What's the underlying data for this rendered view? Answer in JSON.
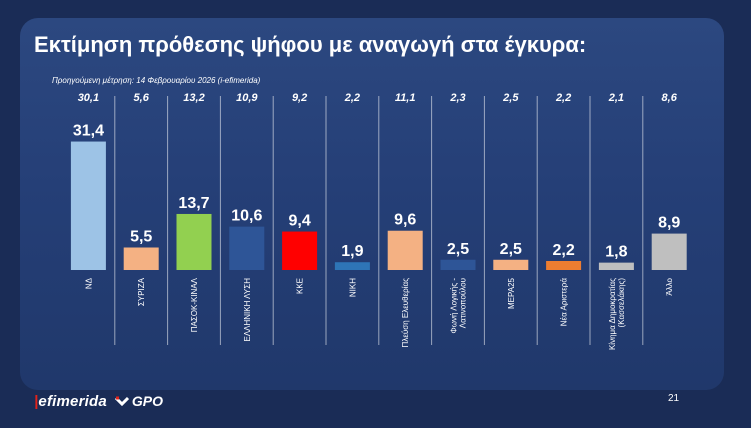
{
  "title": "Εκτίμηση πρόθεσης ψήφου με αναγωγή στα έγκυρα:",
  "previous_note": "Προηγούμενη μέτρηση: 14 Φεβρουαρίου 2026 (i-efimerida)",
  "footer": {
    "brand": "efimerida",
    "brand_partner": "GPO",
    "page_number": "21"
  },
  "colors": {
    "background": "#1a2c56",
    "panel": "#253f77",
    "text": "#ffffff",
    "brand_red": "#e2231a"
  },
  "chart_data": {
    "type": "bar",
    "title": "Εκτίμηση πρόθεσης ψήφου με αναγωγή στα έγκυρα:",
    "xlabel": "",
    "ylabel": "",
    "ylim": [
      0,
      33
    ],
    "grid": false,
    "legend": "none",
    "categories": [
      "ΝΔ",
      "ΣΥΡΙΖΑ",
      "ΠΑΣΟΚ-ΚΙΝΑΛ",
      "ΕΛΛΗΝΙΚΗ ΛΥΣΗ",
      "ΚΚΕ",
      "ΝΙΚΗ",
      "Πλεύση Ελευθερίας",
      "Φωνή Λογικής - Λατινοπούλου",
      "ΜΕΡΑ25",
      "Νέα Αριστερά",
      "Κίνημα Δημοκρατίας (Κασσελάκης)",
      "Άλλο"
    ],
    "category_lines": [
      [
        "ΝΔ"
      ],
      [
        "ΣΥΡΙΖΑ"
      ],
      [
        "ΠΑΣΟΚ-ΚΙΝΑΛ"
      ],
      [
        "ΕΛΛΗΝΙΚΗ ΛΥΣΗ"
      ],
      [
        "ΚΚΕ"
      ],
      [
        "ΝΙΚΗ"
      ],
      [
        "Πλεύση Ελευθερίας"
      ],
      [
        "Φωνή Λογικής -",
        "Λατινοπούλου"
      ],
      [
        "ΜΕΡΑ25"
      ],
      [
        "Νέα Αριστερά"
      ],
      [
        "Κίνημα Δημοκρατίας",
        "(Κασσελάκης)"
      ],
      [
        "Άλλο"
      ]
    ],
    "values": [
      31.4,
      5.5,
      13.7,
      10.6,
      9.4,
      1.9,
      9.6,
      2.5,
      2.5,
      2.2,
      1.8,
      8.9
    ],
    "value_labels": [
      "31,4",
      "5,5",
      "13,7",
      "10,6",
      "9,4",
      "1,9",
      "9,6",
      "2,5",
      "2,5",
      "2,2",
      "1,8",
      "8,9"
    ],
    "previous_values": [
      30.1,
      5.6,
      13.2,
      10.9,
      9.2,
      2.2,
      11.1,
      2.3,
      2.5,
      2.2,
      2.1,
      8.6
    ],
    "previous_labels": [
      "30,1",
      "5,6",
      "13,2",
      "10,9",
      "9,2",
      "2,2",
      "11,1",
      "2,3",
      "2,5",
      "2,2",
      "2,1",
      "8,6"
    ],
    "bar_colors": [
      "#9dc3e6",
      "#f4b183",
      "#92d050",
      "#2e5597",
      "#ff0000",
      "#2e75b6",
      "#f4b183",
      "#2e5597",
      "#f4b183",
      "#ed7d31",
      "#bfbfbf",
      "#bfbfbf"
    ]
  }
}
